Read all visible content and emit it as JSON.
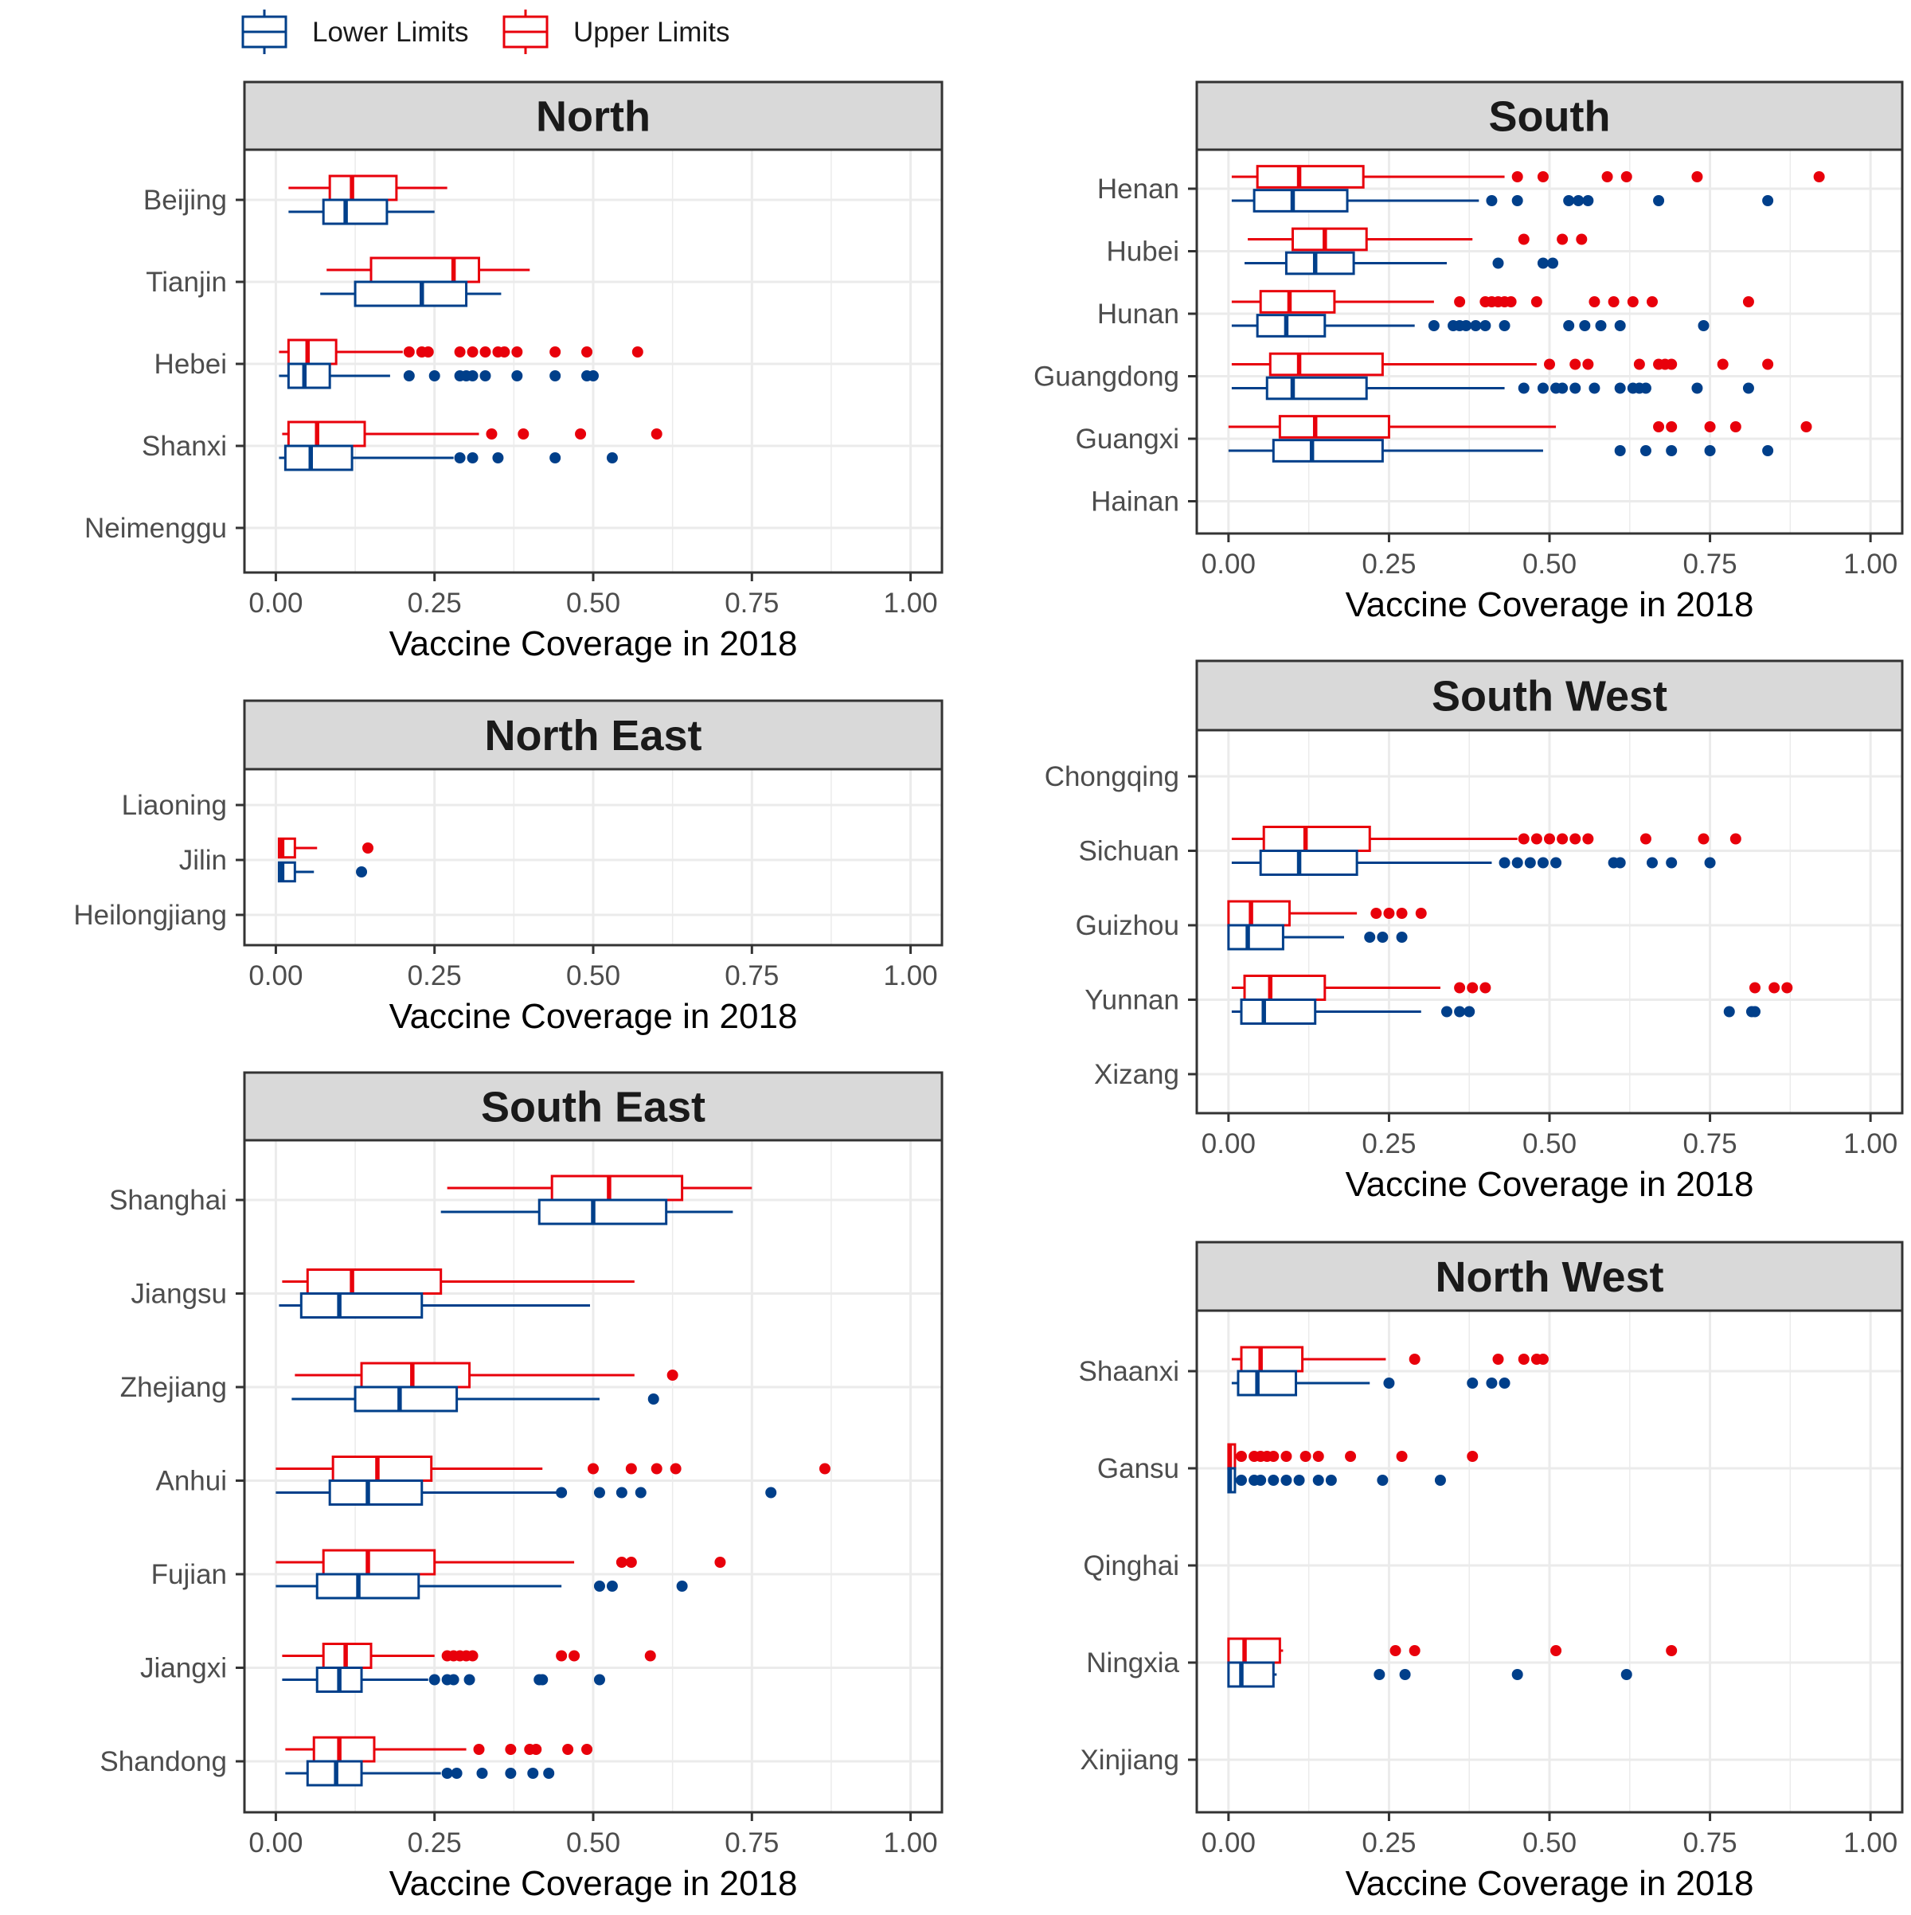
{
  "legend": {
    "position": "top-left",
    "items": [
      {
        "key": "lower",
        "label": "Lower Limits",
        "color": "#003f8a"
      },
      {
        "key": "upper",
        "label": "Upper Limits",
        "color": "#e8000b"
      }
    ]
  },
  "chart_data": [
    {
      "type": "boxplot",
      "orientation": "horizontal",
      "title": "North",
      "xlabel": "Vaccine Coverage in 2018",
      "xlim": [
        0,
        1
      ],
      "xticks": [
        "0.00",
        "0.25",
        "0.50",
        "0.75",
        "1.00"
      ],
      "grid": true,
      "categories": [
        "Beijing",
        "Tianjin",
        "Hebei",
        "Shanxi",
        "Neimenggu"
      ],
      "series": [
        {
          "key": "upper",
          "boxes": [
            {
              "min": 0.02,
              "q1": 0.085,
              "median": 0.12,
              "q3": 0.19,
              "max": 0.27,
              "outliers": []
            },
            {
              "min": 0.08,
              "q1": 0.15,
              "median": 0.28,
              "q3": 0.32,
              "max": 0.4,
              "outliers": []
            },
            {
              "min": 0.005,
              "q1": 0.02,
              "median": 0.05,
              "q3": 0.095,
              "max": 0.2,
              "outliers": [
                0.21,
                0.23,
                0.24,
                0.29,
                0.31,
                0.33,
                0.35,
                0.36,
                0.38,
                0.44,
                0.49,
                0.57
              ]
            },
            {
              "min": 0.01,
              "q1": 0.02,
              "median": 0.065,
              "q3": 0.14,
              "max": 0.32,
              "outliers": [
                0.34,
                0.39,
                0.48,
                0.6
              ]
            },
            null
          ]
        },
        {
          "key": "lower",
          "boxes": [
            {
              "min": 0.02,
              "q1": 0.075,
              "median": 0.11,
              "q3": 0.175,
              "max": 0.25,
              "outliers": []
            },
            {
              "min": 0.07,
              "q1": 0.125,
              "median": 0.23,
              "q3": 0.3,
              "max": 0.355,
              "outliers": []
            },
            {
              "min": 0.005,
              "q1": 0.02,
              "median": 0.045,
              "q3": 0.085,
              "max": 0.18,
              "outliers": [
                0.21,
                0.25,
                0.29,
                0.3,
                0.31,
                0.33,
                0.38,
                0.44,
                0.49,
                0.5
              ]
            },
            {
              "min": 0.005,
              "q1": 0.015,
              "median": 0.055,
              "q3": 0.12,
              "max": 0.28,
              "outliers": [
                0.29,
                0.31,
                0.35,
                0.44,
                0.53
              ]
            },
            null
          ]
        }
      ]
    },
    {
      "type": "boxplot",
      "orientation": "horizontal",
      "title": "North East",
      "xlabel": "Vaccine Coverage in 2018",
      "xlim": [
        0,
        1
      ],
      "xticks": [
        "0.00",
        "0.25",
        "0.50",
        "0.75",
        "1.00"
      ],
      "grid": true,
      "categories": [
        "Liaoning",
        "Jilin",
        "Heilongjiang"
      ],
      "series": [
        {
          "key": "upper",
          "boxes": [
            null,
            {
              "min": 0.005,
              "q1": 0.005,
              "median": 0.01,
              "q3": 0.03,
              "max": 0.065,
              "outliers": [
                0.145
              ]
            },
            null
          ]
        },
        {
          "key": "lower",
          "boxes": [
            null,
            {
              "min": 0.005,
              "q1": 0.005,
              "median": 0.01,
              "q3": 0.03,
              "max": 0.06,
              "outliers": [
                0.135
              ]
            },
            null
          ]
        }
      ]
    },
    {
      "type": "boxplot",
      "orientation": "horizontal",
      "title": "South East",
      "xlabel": "Vaccine Coverage in 2018",
      "xlim": [
        0,
        1
      ],
      "xticks": [
        "0.00",
        "0.25",
        "0.50",
        "0.75",
        "1.00"
      ],
      "grid": true,
      "categories": [
        "Shanghai",
        "Jiangsu",
        "Zhejiang",
        "Anhui",
        "Fujian",
        "Jiangxi",
        "Shandong"
      ],
      "series": [
        {
          "key": "upper",
          "boxes": [
            {
              "min": 0.27,
              "q1": 0.435,
              "median": 0.525,
              "q3": 0.64,
              "max": 0.75,
              "outliers": []
            },
            {
              "min": 0.01,
              "q1": 0.05,
              "median": 0.12,
              "q3": 0.26,
              "max": 0.565,
              "outliers": []
            },
            {
              "min": 0.03,
              "q1": 0.135,
              "median": 0.215,
              "q3": 0.305,
              "max": 0.565,
              "outliers": [
                0.625
              ]
            },
            {
              "min": 0.0,
              "q1": 0.09,
              "median": 0.16,
              "q3": 0.245,
              "max": 0.42,
              "outliers": [
                0.5,
                0.56,
                0.6,
                0.63,
                0.865
              ]
            },
            {
              "min": 0.0,
              "q1": 0.075,
              "median": 0.145,
              "q3": 0.25,
              "max": 0.47,
              "outliers": [
                0.545,
                0.56,
                0.7
              ]
            },
            {
              "min": 0.01,
              "q1": 0.075,
              "median": 0.11,
              "q3": 0.15,
              "max": 0.25,
              "outliers": [
                0.27,
                0.28,
                0.29,
                0.3,
                0.31,
                0.45,
                0.47,
                0.59
              ]
            },
            {
              "min": 0.015,
              "q1": 0.06,
              "median": 0.1,
              "q3": 0.155,
              "max": 0.3,
              "outliers": [
                0.32,
                0.37,
                0.4,
                0.41,
                0.46,
                0.49
              ]
            }
          ]
        },
        {
          "key": "lower",
          "boxes": [
            {
              "min": 0.26,
              "q1": 0.415,
              "median": 0.5,
              "q3": 0.615,
              "max": 0.72,
              "outliers": []
            },
            {
              "min": 0.005,
              "q1": 0.04,
              "median": 0.1,
              "q3": 0.23,
              "max": 0.495,
              "outliers": []
            },
            {
              "min": 0.025,
              "q1": 0.125,
              "median": 0.195,
              "q3": 0.285,
              "max": 0.51,
              "outliers": [
                0.595
              ]
            },
            {
              "min": 0.0,
              "q1": 0.085,
              "median": 0.145,
              "q3": 0.23,
              "max": 0.45,
              "outliers": [
                0.45,
                0.51,
                0.545,
                0.575,
                0.78
              ]
            },
            {
              "min": 0.0,
              "q1": 0.065,
              "median": 0.13,
              "q3": 0.225,
              "max": 0.45,
              "outliers": [
                0.51,
                0.53,
                0.64
              ]
            },
            {
              "min": 0.01,
              "q1": 0.065,
              "median": 0.1,
              "q3": 0.135,
              "max": 0.24,
              "outliers": [
                0.25,
                0.27,
                0.28,
                0.305,
                0.415,
                0.42,
                0.51
              ]
            },
            {
              "min": 0.015,
              "q1": 0.05,
              "median": 0.095,
              "q3": 0.135,
              "max": 0.26,
              "outliers": [
                0.27,
                0.285,
                0.325,
                0.37,
                0.405,
                0.43
              ]
            }
          ]
        }
      ]
    },
    {
      "type": "boxplot",
      "orientation": "horizontal",
      "title": "South",
      "xlabel": "Vaccine Coverage in 2018",
      "xlim": [
        0,
        1
      ],
      "xticks": [
        "0.00",
        "0.25",
        "0.50",
        "0.75",
        "1.00"
      ],
      "grid": true,
      "categories": [
        "Henan",
        "Hubei",
        "Hunan",
        "Guangdong",
        "Guangxi",
        "Hainan"
      ],
      "series": [
        {
          "key": "upper",
          "boxes": [
            {
              "min": 0.005,
              "q1": 0.045,
              "median": 0.11,
              "q3": 0.21,
              "max": 0.43,
              "outliers": [
                0.45,
                0.49,
                0.59,
                0.62,
                0.73,
                0.92
              ]
            },
            {
              "min": 0.03,
              "q1": 0.1,
              "median": 0.15,
              "q3": 0.215,
              "max": 0.38,
              "outliers": [
                0.46,
                0.52,
                0.55
              ]
            },
            {
              "min": 0.005,
              "q1": 0.05,
              "median": 0.095,
              "q3": 0.165,
              "max": 0.32,
              "outliers": [
                0.36,
                0.4,
                0.41,
                0.42,
                0.43,
                0.44,
                0.48,
                0.57,
                0.6,
                0.63,
                0.66,
                0.81
              ]
            },
            {
              "min": 0.005,
              "q1": 0.065,
              "median": 0.11,
              "q3": 0.24,
              "max": 0.48,
              "outliers": [
                0.5,
                0.54,
                0.56,
                0.64,
                0.67,
                0.68,
                0.69,
                0.77,
                0.84
              ]
            },
            {
              "min": 0.0,
              "q1": 0.08,
              "median": 0.135,
              "q3": 0.25,
              "max": 0.51,
              "outliers": [
                0.67,
                0.69,
                0.75,
                0.79,
                0.9
              ]
            },
            null
          ]
        },
        {
          "key": "lower",
          "boxes": [
            {
              "min": 0.005,
              "q1": 0.04,
              "median": 0.1,
              "q3": 0.185,
              "max": 0.39,
              "outliers": [
                0.41,
                0.45,
                0.53,
                0.545,
                0.56,
                0.67,
                0.84
              ]
            },
            {
              "min": 0.025,
              "q1": 0.09,
              "median": 0.135,
              "q3": 0.195,
              "max": 0.34,
              "outliers": [
                0.42,
                0.49,
                0.505
              ]
            },
            {
              "min": 0.005,
              "q1": 0.045,
              "median": 0.09,
              "q3": 0.15,
              "max": 0.29,
              "outliers": [
                0.32,
                0.35,
                0.36,
                0.37,
                0.385,
                0.4,
                0.43,
                0.53,
                0.555,
                0.58,
                0.61,
                0.74
              ]
            },
            {
              "min": 0.005,
              "q1": 0.06,
              "median": 0.1,
              "q3": 0.215,
              "max": 0.43,
              "outliers": [
                0.46,
                0.49,
                0.51,
                0.52,
                0.54,
                0.57,
                0.61,
                0.63,
                0.64,
                0.65,
                0.73,
                0.81
              ]
            },
            {
              "min": 0.0,
              "q1": 0.07,
              "median": 0.13,
              "q3": 0.24,
              "max": 0.49,
              "outliers": [
                0.61,
                0.65,
                0.69,
                0.75,
                0.84
              ]
            },
            null
          ]
        }
      ]
    },
    {
      "type": "boxplot",
      "orientation": "horizontal",
      "title": "South West",
      "xlabel": "Vaccine Coverage in 2018",
      "xlim": [
        0,
        1
      ],
      "xticks": [
        "0.00",
        "0.25",
        "0.50",
        "0.75",
        "1.00"
      ],
      "grid": true,
      "categories": [
        "Chongqing",
        "Sichuan",
        "Guizhou",
        "Yunnan",
        "Xizang"
      ],
      "series": [
        {
          "key": "upper",
          "boxes": [
            null,
            {
              "min": 0.005,
              "q1": 0.055,
              "median": 0.12,
              "q3": 0.22,
              "max": 0.45,
              "outliers": [
                0.46,
                0.48,
                0.5,
                0.52,
                0.54,
                0.56,
                0.65,
                0.74,
                0.79
              ]
            },
            {
              "min": 0.0,
              "q1": 0.0,
              "median": 0.035,
              "q3": 0.095,
              "max": 0.2,
              "outliers": [
                0.23,
                0.25,
                0.27,
                0.3
              ]
            },
            {
              "min": 0.005,
              "q1": 0.025,
              "median": 0.065,
              "q3": 0.15,
              "max": 0.33,
              "outliers": [
                0.36,
                0.38,
                0.4,
                0.82,
                0.85,
                0.87
              ]
            },
            null
          ]
        },
        {
          "key": "lower",
          "boxes": [
            null,
            {
              "min": 0.005,
              "q1": 0.05,
              "median": 0.11,
              "q3": 0.2,
              "max": 0.41,
              "outliers": [
                0.43,
                0.45,
                0.47,
                0.49,
                0.51,
                0.6,
                0.61,
                0.66,
                0.69,
                0.75
              ]
            },
            {
              "min": 0.0,
              "q1": 0.0,
              "median": 0.03,
              "q3": 0.085,
              "max": 0.18,
              "outliers": [
                0.22,
                0.24,
                0.27
              ]
            },
            {
              "min": 0.005,
              "q1": 0.02,
              "median": 0.055,
              "q3": 0.135,
              "max": 0.3,
              "outliers": [
                0.34,
                0.36,
                0.375,
                0.78,
                0.815,
                0.82
              ]
            },
            null
          ]
        }
      ]
    },
    {
      "type": "boxplot",
      "orientation": "horizontal",
      "title": "North West",
      "xlabel": "Vaccine Coverage in 2018",
      "xlim": [
        0,
        1
      ],
      "xticks": [
        "0.00",
        "0.25",
        "0.50",
        "0.75",
        "1.00"
      ],
      "grid": true,
      "categories": [
        "Shaanxi",
        "Gansu",
        "Qinghai",
        "Ningxia",
        "Xinjiang"
      ],
      "series": [
        {
          "key": "upper",
          "boxes": [
            {
              "min": 0.005,
              "q1": 0.02,
              "median": 0.05,
              "q3": 0.115,
              "max": 0.245,
              "outliers": [
                0.29,
                0.42,
                0.46,
                0.48,
                0.49
              ]
            },
            {
              "min": 0.0,
              "q1": 0.0,
              "median": 0.002,
              "q3": 0.01,
              "max": 0.01,
              "outliers": [
                0.02,
                0.04,
                0.05,
                0.06,
                0.07,
                0.09,
                0.12,
                0.14,
                0.19,
                0.27,
                0.38
              ]
            },
            null,
            {
              "min": 0.0,
              "q1": 0.0,
              "median": 0.025,
              "q3": 0.08,
              "max": 0.085,
              "outliers": [
                0.26,
                0.29,
                0.51,
                0.69
              ]
            },
            null
          ]
        },
        {
          "key": "lower",
          "boxes": [
            {
              "min": 0.005,
              "q1": 0.015,
              "median": 0.045,
              "q3": 0.105,
              "max": 0.22,
              "outliers": [
                0.25,
                0.38,
                0.41,
                0.43
              ]
            },
            {
              "min": 0.0,
              "q1": 0.0,
              "median": 0.002,
              "q3": 0.01,
              "max": 0.01,
              "outliers": [
                0.02,
                0.04,
                0.05,
                0.07,
                0.09,
                0.11,
                0.14,
                0.16,
                0.24,
                0.33
              ]
            },
            null,
            {
              "min": 0.0,
              "q1": 0.0,
              "median": 0.02,
              "q3": 0.07,
              "max": 0.075,
              "outliers": [
                0.235,
                0.275,
                0.45,
                0.62
              ]
            },
            null
          ]
        }
      ]
    }
  ]
}
